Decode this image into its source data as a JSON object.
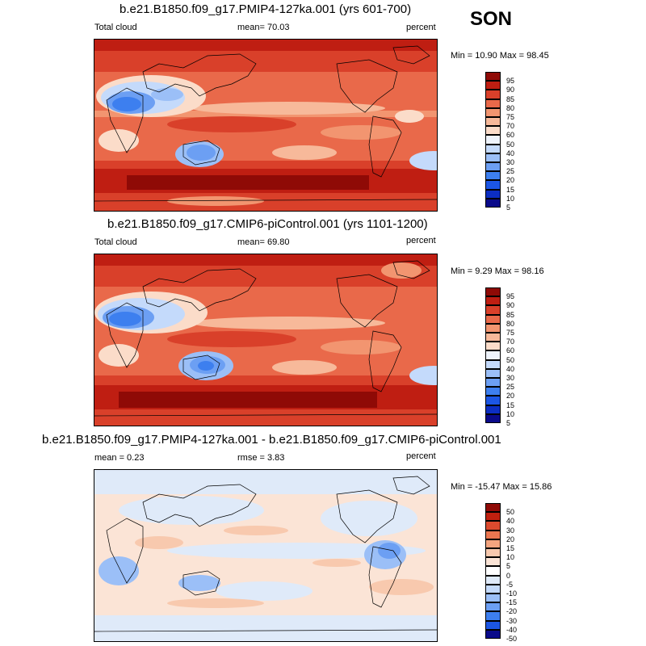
{
  "season": "SON",
  "colors": {
    "abs_scale": [
      "#0a0a8a",
      "#0c2ec2",
      "#1c56e4",
      "#3d7fef",
      "#6c9ff3",
      "#9bbff7",
      "#c4dafb",
      "#eef3fb",
      "#fbdcc9",
      "#f7b99a",
      "#f29570",
      "#e9694a",
      "#d9402a",
      "#bf1e12",
      "#8f0a06"
    ],
    "diff_scale": [
      "#0a0a8a",
      "#0c2ec2",
      "#1c56e4",
      "#3d7fef",
      "#6c9ff3",
      "#9bbff7",
      "#c4dafb",
      "#dfeaf9",
      "#fbe4d6",
      "#f8c9ae",
      "#f3a47f",
      "#eb7650",
      "#dc4a2e",
      "#c0200f",
      "#8f0a06"
    ],
    "land": "#000000"
  },
  "panels": [
    {
      "id": "top",
      "title": "b.e21.B1850.f09_g17.PMIP4-127ka.001 (yrs 601-700)",
      "left_label": "Total cloud",
      "center_label": "mean=  70.03",
      "right_label": "percent",
      "minmax": "Min =  10.90 Max =  98.45",
      "colorbar_labels": [
        "95",
        "90",
        "85",
        "80",
        "75",
        "70",
        "60",
        "50",
        "40",
        "30",
        "25",
        "20",
        "15",
        "10",
        "5"
      ]
    },
    {
      "id": "middle",
      "title": "b.e21.B1850.f09_g17.CMIP6-piControl.001 (yrs 1101-1200)",
      "left_label": "Total cloud",
      "center_label": "mean=  69.80",
      "right_label": "percent",
      "minmax": "Min =   9.29 Max =  98.16",
      "colorbar_labels": [
        "95",
        "90",
        "85",
        "80",
        "75",
        "70",
        "60",
        "50",
        "40",
        "30",
        "25",
        "20",
        "15",
        "10",
        "5"
      ]
    },
    {
      "id": "bottom",
      "title": "b.e21.B1850.f09_g17.PMIP4-127ka.001 - b.e21.B1850.f09_g17.CMIP6-piControl.001",
      "left_label": "mean =   0.23",
      "center_label": "rmse =   3.83",
      "right_label": "percent",
      "minmax": "Min = -15.47 Max =  15.86",
      "colorbar_labels": [
        "50",
        "40",
        "30",
        "20",
        "15",
        "10",
        "5",
        "0",
        "-5",
        "-10",
        "-15",
        "-20",
        "-30",
        "-40",
        "-50"
      ]
    }
  ],
  "chart_data": [
    {
      "type": "heatmap",
      "title": "b.e21.B1850.f09_g17.PMIP4-127ka.001 (yrs 601-700)",
      "variable": "Total cloud",
      "units": "percent",
      "mean": 70.03,
      "min": 10.9,
      "max": 98.45,
      "contour_levels": [
        5,
        10,
        15,
        20,
        25,
        30,
        40,
        50,
        60,
        70,
        75,
        80,
        85,
        90,
        95
      ]
    },
    {
      "type": "heatmap",
      "title": "b.e21.B1850.f09_g17.CMIP6-piControl.001 (yrs 1101-1200)",
      "variable": "Total cloud",
      "units": "percent",
      "mean": 69.8,
      "min": 9.29,
      "max": 98.16,
      "contour_levels": [
        5,
        10,
        15,
        20,
        25,
        30,
        40,
        50,
        60,
        70,
        75,
        80,
        85,
        90,
        95
      ]
    },
    {
      "type": "heatmap",
      "title": "b.e21.B1850.f09_g17.PMIP4-127ka.001 - b.e21.B1850.f09_g17.CMIP6-piControl.001",
      "units": "percent",
      "mean": 0.23,
      "rmse": 3.83,
      "min": -15.47,
      "max": 15.86,
      "contour_levels": [
        -50,
        -40,
        -30,
        -20,
        -15,
        -10,
        -5,
        0,
        5,
        10,
        15,
        20,
        30,
        40,
        50
      ]
    }
  ]
}
